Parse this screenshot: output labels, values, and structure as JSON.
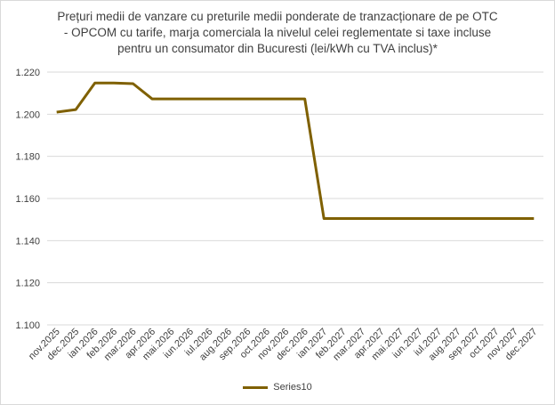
{
  "chart_data": {
    "type": "line",
    "title_lines": [
      "Prețuri medii de vanzare cu preturile medii ponderate de tranzacționare de pe OTC",
      "- OPCOM cu tarife, marja comerciala la nivelul celei reglementate si taxe incluse",
      "pentru un consumator din Bucuresti (lei/kWh cu TVA inclus)*"
    ],
    "xlabel": "",
    "ylabel": "",
    "ylim": [
      1.1,
      1.22
    ],
    "yticks": [
      "1.100",
      "1.120",
      "1.140",
      "1.160",
      "1.180",
      "1.200",
      "1.220"
    ],
    "ytick_values": [
      1.1,
      1.12,
      1.14,
      1.16,
      1.18,
      1.2,
      1.22
    ],
    "grid": true,
    "legend_position": "bottom",
    "categories": [
      "nov.2025",
      "dec.2025",
      "ian.2026",
      "feb.2026",
      "mar.2026",
      "apr.2026",
      "mai.2026",
      "iun.2026",
      "iul.2026",
      "aug.2026",
      "sep.2026",
      "oct.2026",
      "nov.2026",
      "dec.2026",
      "ian.2027",
      "feb.2027",
      "mar.2027",
      "apr.2027",
      "mai.2027",
      "iun.2027",
      "iul.2027",
      "aug.2027",
      "sep.2027",
      "oct.2027",
      "nov.2027",
      "dec.2027"
    ],
    "series": [
      {
        "name": "Series10",
        "color": "#7f6000",
        "values": [
          1.201,
          1.2022,
          1.2148,
          1.2148,
          1.2145,
          1.2073,
          1.2073,
          1.2073,
          1.2073,
          1.2073,
          1.2073,
          1.2073,
          1.2073,
          1.2073,
          1.1505,
          1.1505,
          1.1505,
          1.1505,
          1.1505,
          1.1505,
          1.1505,
          1.1505,
          1.1505,
          1.1505,
          1.1505,
          1.1505
        ]
      }
    ]
  }
}
